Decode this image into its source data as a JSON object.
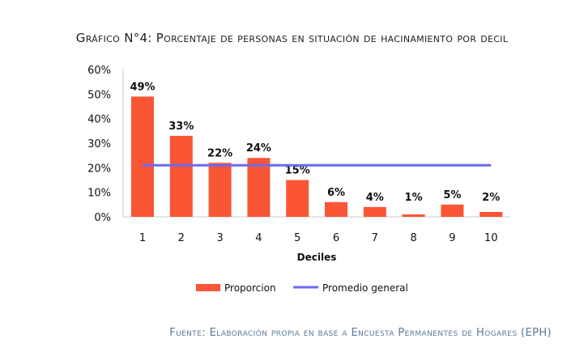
{
  "title": "Gráfico N°4: Porcentaje de personas en situación de hacinamiento por decil",
  "footer": "Fuente: Elaboración propia en base a Encuesta Permanentes de Hogares (EPH)",
  "colors": {
    "bar": "#FA5535",
    "line": "#6A6AF0"
  },
  "chart_data": {
    "type": "bar",
    "title": "Gráfico N°4: Porcentaje de personas en situación de hacinamiento por decil",
    "xlabel": "Deciles",
    "ylabel": "",
    "categories": [
      "1",
      "2",
      "3",
      "4",
      "5",
      "6",
      "7",
      "8",
      "9",
      "10"
    ],
    "series": [
      {
        "name": "Proporcion",
        "type": "bar",
        "values": [
          49,
          33,
          22,
          24,
          15,
          6,
          4,
          1,
          5,
          2
        ],
        "labels": [
          "49%",
          "33%",
          "22%",
          "24%",
          "15%",
          "6%",
          "4%",
          "1%",
          "5%",
          "2%"
        ]
      },
      {
        "name": "Promedio general",
        "type": "line",
        "values": [
          21,
          21,
          21,
          21,
          21,
          21,
          21,
          21,
          21,
          21
        ]
      }
    ],
    "ylim": [
      0,
      60
    ],
    "yticks": [
      "0%",
      "10%",
      "20%",
      "30%",
      "40%",
      "50%",
      "60%"
    ],
    "grid": false,
    "legend": "bottom"
  }
}
